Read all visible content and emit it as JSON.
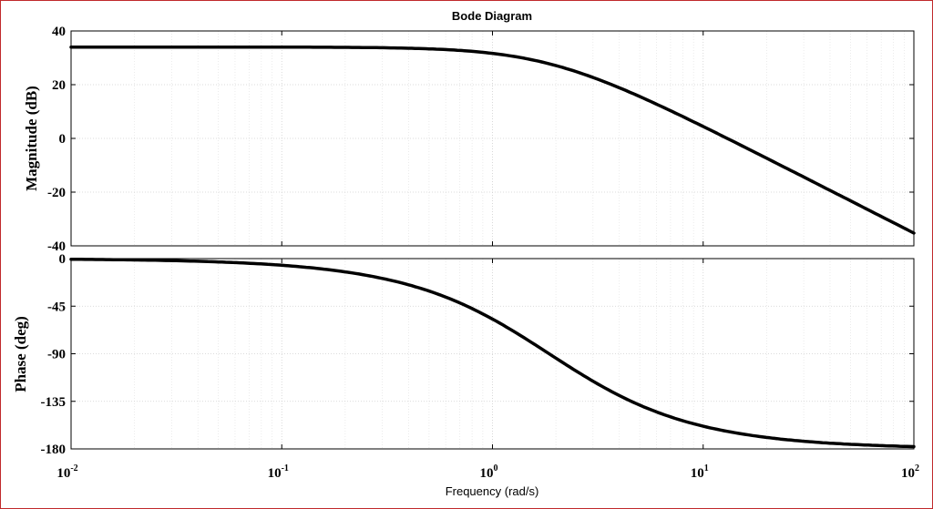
{
  "chart_data": {
    "type": "line",
    "title": "Bode Diagram",
    "xlabel": "Frequency  (rad/s)",
    "xscale": "log",
    "xlim": [
      0.01,
      100
    ],
    "xticks": [
      {
        "base": "10",
        "exp": "-2"
      },
      {
        "base": "10",
        "exp": "-1"
      },
      {
        "base": "10",
        "exp": "0"
      },
      {
        "base": "10",
        "exp": "1"
      },
      {
        "base": "10",
        "exp": "2"
      }
    ],
    "grid": true,
    "panels": [
      {
        "id": "magnitude",
        "ylabel": "Magnitude (dB)",
        "ylim": [
          -40,
          40
        ],
        "yticks": [
          "40",
          "20",
          "0",
          "-20",
          "-40"
        ],
        "ytick_values": [
          40,
          20,
          0,
          -20,
          -40
        ],
        "series": [
          {
            "name": "magnitude",
            "model": {
              "dc_gain_db": 34,
              "pole1": 1.5,
              "pole2": 2.3
            }
          }
        ]
      },
      {
        "id": "phase",
        "ylabel": "Phase (deg)",
        "ylim": [
          -180,
          0
        ],
        "yticks": [
          "0",
          "-45",
          "-90",
          "-135",
          "-180"
        ],
        "ytick_values": [
          0,
          -45,
          -90,
          -135,
          -180
        ],
        "series": [
          {
            "name": "phase",
            "model": {
              "pole1": 1.5,
              "pole2": 2.3
            }
          }
        ]
      }
    ]
  }
}
